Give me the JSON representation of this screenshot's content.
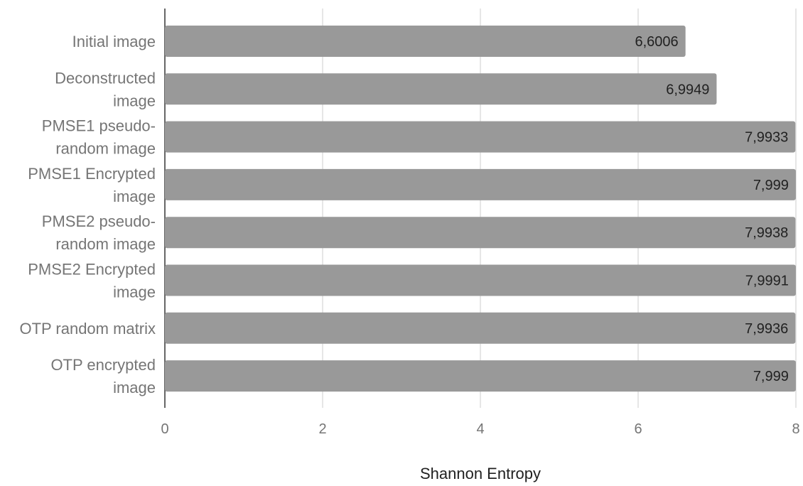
{
  "chart_data": {
    "type": "bar",
    "orientation": "horizontal",
    "categories": [
      [
        "Initial image"
      ],
      [
        "Deconstructed",
        "image"
      ],
      [
        "PMSE1 pseudo-",
        "random image"
      ],
      [
        "PMSE1 Encrypted",
        "image"
      ],
      [
        "PMSE2 pseudo-",
        "random image"
      ],
      [
        "PMSE2 Encrypted",
        "image"
      ],
      [
        "OTP random matrix"
      ],
      [
        "OTP encrypted",
        "image"
      ]
    ],
    "values": [
      6.6006,
      6.9949,
      7.9933,
      7.999,
      7.9938,
      7.9991,
      7.9936,
      7.999
    ],
    "data_labels": [
      "6,6006",
      "6,9949",
      "7,9933",
      "7,999",
      "7,9938",
      "7,9991",
      "7,9936",
      "7,999"
    ],
    "xlabel": "Shannon Entropy",
    "xlim": [
      0,
      8
    ],
    "xticks": [
      0,
      2,
      4,
      6,
      8
    ],
    "xtick_labels": [
      "0",
      "2",
      "4",
      "6",
      "8"
    ],
    "grid": true,
    "bar_color": "#999999",
    "gridline_color": "#cccccc"
  }
}
